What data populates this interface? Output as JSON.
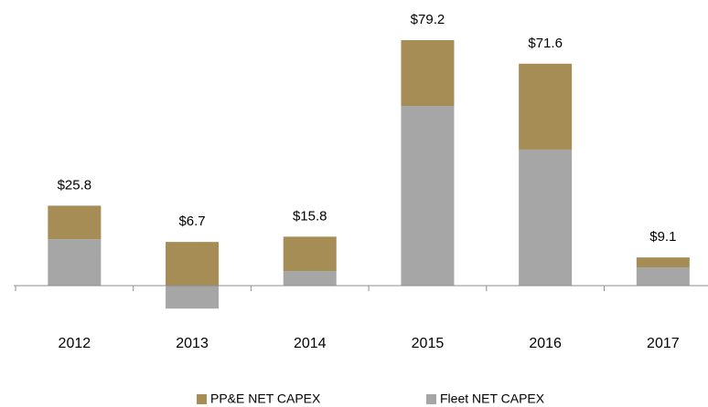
{
  "chart_data": {
    "type": "stacked_bar",
    "categories": [
      "2012",
      "2013",
      "2014",
      "2015",
      "2016",
      "2017"
    ],
    "series": [
      {
        "name": "PP&E NET CAPEX",
        "color": "#a68c55",
        "values": [
          10.8,
          14.1,
          11.1,
          21.2,
          27.7,
          3.2
        ]
      },
      {
        "name": "Fleet NET CAPEX",
        "color": "#a6a6a6",
        "values": [
          15.0,
          -7.4,
          4.7,
          58.0,
          43.9,
          5.9
        ]
      }
    ],
    "totals": [
      25.8,
      6.7,
      15.8,
      79.2,
      71.6,
      9.1
    ],
    "total_labels": [
      "$25.8",
      "$6.7",
      "$15.8",
      "$79.2",
      "$71.6",
      "$9.1"
    ],
    "ylim": [
      -10,
      85
    ]
  }
}
